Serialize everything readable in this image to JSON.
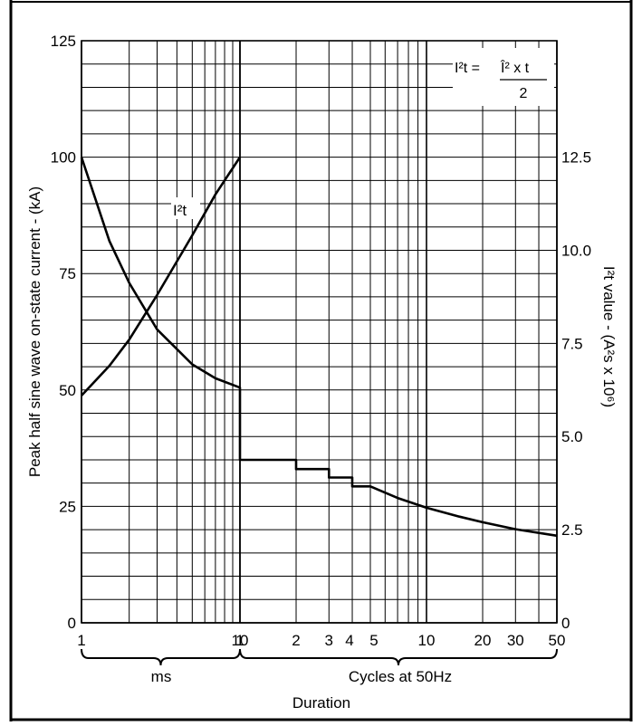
{
  "chart_data": {
    "type": "line",
    "title": "",
    "xlabel": "Duration",
    "x_groups": [
      {
        "label": "ms",
        "range": [
          1,
          10
        ],
        "scale": "log"
      },
      {
        "label": "Cycles at 50Hz",
        "range": [
          1,
          50
        ],
        "scale": "log"
      }
    ],
    "x_ticks": {
      "ms": [
        "1",
        "10"
      ],
      "cycles": [
        "1",
        "2",
        "3",
        "4",
        "5",
        "10",
        "20",
        "30",
        "50"
      ]
    },
    "ylabel_left": "Peak half sine wave on-state current - (kA)",
    "ylim_left": [
      0,
      125
    ],
    "yticks_left": [
      "0",
      "25",
      "50",
      "75",
      "100",
      "125"
    ],
    "ylabel_right": "I²t value - (A²s x 10⁶)",
    "ylim_right": [
      0,
      15.625
    ],
    "yticks_right": [
      "0",
      "2.5",
      "5.0",
      "7.5",
      "10.0",
      "12.5"
    ],
    "formula": {
      "lhs": "I²t = ",
      "numerator": "Î² x t",
      "denominator": "2"
    },
    "series": [
      {
        "name": "",
        "axis": "left",
        "points": [
          {
            "group": "ms",
            "x": 1,
            "y": 100
          },
          {
            "group": "ms",
            "x": 1.5,
            "y": 82
          },
          {
            "group": "ms",
            "x": 2,
            "y": 73
          },
          {
            "group": "ms",
            "x": 3,
            "y": 63
          },
          {
            "group": "ms",
            "x": 5,
            "y": 55.5
          },
          {
            "group": "ms",
            "x": 7,
            "y": 52.5
          },
          {
            "group": "ms",
            "x": 10,
            "y": 50.5
          },
          {
            "group": "cycles",
            "x": 1,
            "y": 50.5
          },
          {
            "group": "cycles",
            "x": 1,
            "y": 35
          },
          {
            "group": "cycles",
            "x": 2,
            "y": 35
          },
          {
            "group": "cycles",
            "x": 2,
            "y": 33
          },
          {
            "group": "cycles",
            "x": 3,
            "y": 33
          },
          {
            "group": "cycles",
            "x": 3,
            "y": 31.2
          },
          {
            "group": "cycles",
            "x": 4,
            "y": 31.2
          },
          {
            "group": "cycles",
            "x": 4,
            "y": 29.3
          },
          {
            "group": "cycles",
            "x": 5,
            "y": 29.3
          },
          {
            "group": "cycles",
            "x": 7,
            "y": 26.8
          },
          {
            "group": "cycles",
            "x": 10,
            "y": 24.7
          },
          {
            "group": "cycles",
            "x": 15,
            "y": 22.8
          },
          {
            "group": "cycles",
            "x": 20,
            "y": 21.6
          },
          {
            "group": "cycles",
            "x": 30,
            "y": 20.1
          },
          {
            "group": "cycles",
            "x": 50,
            "y": 18.7
          }
        ]
      },
      {
        "name": "I²t",
        "axis": "right",
        "points": [
          {
            "group": "ms",
            "x": 1,
            "y": 6.1
          },
          {
            "group": "ms",
            "x": 1.5,
            "y": 6.9
          },
          {
            "group": "ms",
            "x": 2,
            "y": 7.6
          },
          {
            "group": "ms",
            "x": 3,
            "y": 8.8
          },
          {
            "group": "ms",
            "x": 5,
            "y": 10.4
          },
          {
            "group": "ms",
            "x": 7,
            "y": 11.5
          },
          {
            "group": "ms",
            "x": 10,
            "y": 12.5
          }
        ]
      }
    ],
    "grid": true,
    "legend": "inline label near curve"
  }
}
